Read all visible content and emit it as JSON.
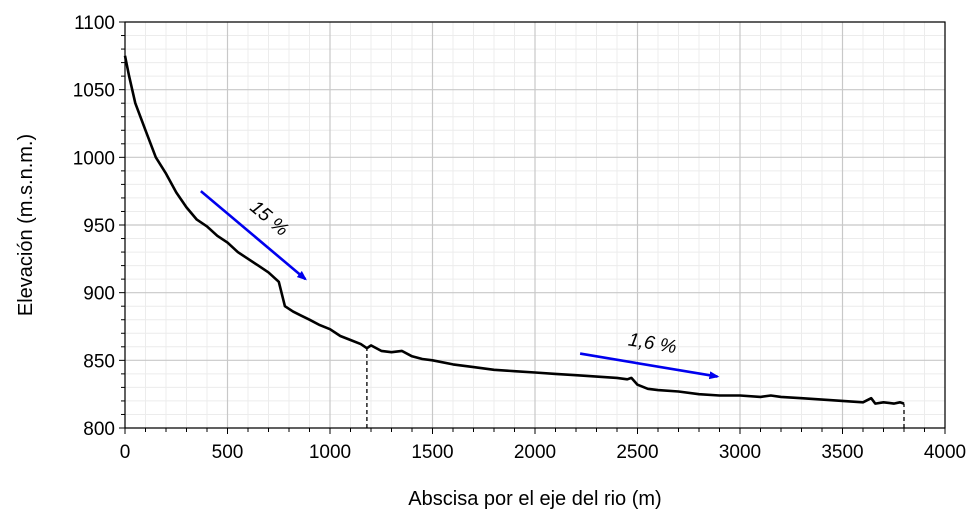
{
  "chart_data": {
    "type": "line",
    "xlabel": "Abscisa por el eje del rio (m)",
    "ylabel": "Elevación (m.s.n.m.)",
    "xlim": [
      0,
      4000
    ],
    "ylim": [
      800,
      1100
    ],
    "xticks": [
      "0",
      "500",
      "1000",
      "1500",
      "2000",
      "2500",
      "3000",
      "3500",
      "4000"
    ],
    "yticks": [
      "800",
      "850",
      "900",
      "950",
      "1000",
      "1050",
      "1100"
    ],
    "grid": "major and minor",
    "series": [
      {
        "color": "#000000",
        "x": [
          0,
          20,
          50,
          100,
          150,
          200,
          250,
          300,
          350,
          400,
          450,
          500,
          550,
          600,
          650,
          700,
          750,
          780,
          820,
          860,
          900,
          950,
          1000,
          1050,
          1100,
          1150,
          1180,
          1200,
          1250,
          1300,
          1350,
          1400,
          1450,
          1500,
          1600,
          1700,
          1800,
          1900,
          2000,
          2100,
          2200,
          2300,
          2400,
          2450,
          2470,
          2500,
          2550,
          2600,
          2700,
          2800,
          2900,
          3000,
          3100,
          3150,
          3200,
          3300,
          3400,
          3500,
          3600,
          3640,
          3660,
          3700,
          3750,
          3780,
          3800
        ],
        "y": [
          1075,
          1060,
          1040,
          1020,
          1000,
          988,
          974,
          963,
          954,
          949,
          942,
          937,
          930,
          925,
          920,
          915,
          908,
          890,
          886,
          883,
          880,
          876,
          873,
          868,
          865,
          862,
          859,
          861,
          857,
          856,
          857,
          853,
          851,
          850,
          847,
          845,
          843,
          842,
          841,
          840,
          839,
          838,
          837,
          836,
          837,
          832,
          829,
          828,
          827,
          825,
          824,
          824,
          823,
          824,
          823,
          822,
          821,
          820,
          819,
          822,
          818,
          819,
          818,
          819,
          818
        ]
      }
    ],
    "reference_lines": [
      {
        "x": 1180,
        "y_from": 800,
        "y_to": 859,
        "style": "dashed"
      },
      {
        "x": 3800,
        "y_from": 800,
        "y_to": 818,
        "style": "dashed"
      }
    ],
    "arrows": [
      {
        "label": "15 %",
        "color": "#0000ee",
        "from": [
          370,
          975
        ],
        "to": [
          880,
          910
        ]
      },
      {
        "label": "1,6 %",
        "color": "#0000ee",
        "from": [
          2220,
          855
        ],
        "to": [
          2890,
          838
        ]
      }
    ]
  }
}
